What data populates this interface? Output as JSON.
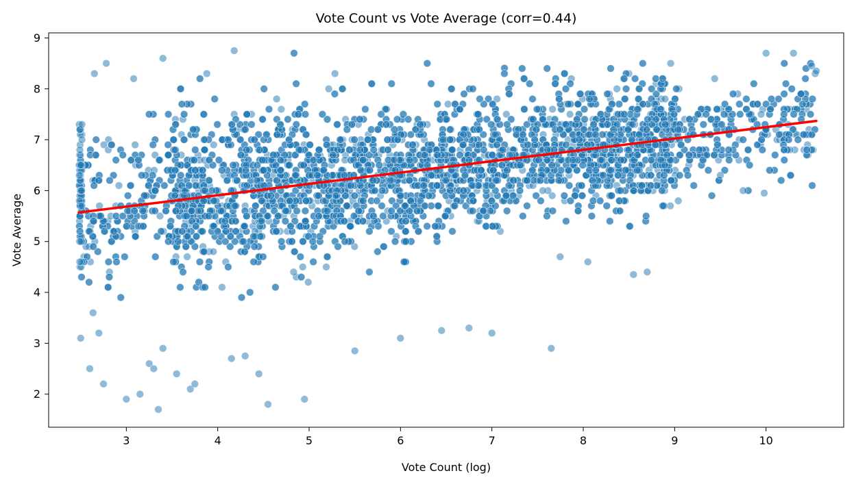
{
  "chart_data": {
    "type": "scatter",
    "title": "Vote Count vs Vote Average (corr=0.44)",
    "xlabel": "Vote Count (log)",
    "ylabel": "Vote Average",
    "xlim": [
      2.15,
      10.85
    ],
    "ylim": [
      1.35,
      9.1
    ],
    "xticks": [
      3,
      4,
      5,
      6,
      7,
      8,
      9,
      10
    ],
    "yticks": [
      2,
      3,
      4,
      5,
      6,
      7,
      8,
      9
    ],
    "grid": false,
    "legend": "none",
    "correlation": 0.44,
    "colors": {
      "points": "#1f77b4",
      "point_edge": "#ffffff",
      "regression_line": "#ff0000",
      "axes": "#000000",
      "background": "#ffffff"
    },
    "regression_line": {
      "x": [
        2.48,
        10.55
      ],
      "y": [
        5.57,
        7.37
      ]
    },
    "dense_cloud": {
      "description_points": "bulk of data between x 2.5 and 10.5 following the trend line",
      "x_range": [
        2.48,
        10.55
      ],
      "spread": 0.62
    },
    "points": [
      {
        "x": 2.5,
        "y": 3.1
      },
      {
        "x": 2.6,
        "y": 2.5
      },
      {
        "x": 2.7,
        "y": 3.2
      },
      {
        "x": 2.75,
        "y": 2.2
      },
      {
        "x": 3.0,
        "y": 1.9
      },
      {
        "x": 3.15,
        "y": 2.0
      },
      {
        "x": 3.35,
        "y": 1.7
      },
      {
        "x": 3.25,
        "y": 2.6
      },
      {
        "x": 3.3,
        "y": 2.5
      },
      {
        "x": 3.4,
        "y": 2.9
      },
      {
        "x": 3.55,
        "y": 2.4
      },
      {
        "x": 3.7,
        "y": 2.1
      },
      {
        "x": 3.75,
        "y": 2.2
      },
      {
        "x": 4.15,
        "y": 2.7
      },
      {
        "x": 4.3,
        "y": 2.75
      },
      {
        "x": 4.45,
        "y": 2.4
      },
      {
        "x": 4.55,
        "y": 1.8
      },
      {
        "x": 4.95,
        "y": 1.9
      },
      {
        "x": 5.5,
        "y": 2.85
      },
      {
        "x": 6.0,
        "y": 3.1
      },
      {
        "x": 6.45,
        "y": 3.25
      },
      {
        "x": 6.75,
        "y": 3.3
      },
      {
        "x": 7.0,
        "y": 3.2
      },
      {
        "x": 7.65,
        "y": 2.9
      },
      {
        "x": 8.55,
        "y": 4.35
      },
      {
        "x": 8.7,
        "y": 4.4
      },
      {
        "x": 3.4,
        "y": 8.6
      },
      {
        "x": 4.18,
        "y": 8.75
      },
      {
        "x": 2.78,
        "y": 8.5
      },
      {
        "x": 2.65,
        "y": 8.3
      },
      {
        "x": 3.08,
        "y": 8.2
      },
      {
        "x": 3.88,
        "y": 8.3
      },
      {
        "x": 10.0,
        "y": 8.7
      },
      {
        "x": 10.3,
        "y": 8.7
      },
      {
        "x": 10.5,
        "y": 8.45
      },
      {
        "x": 10.55,
        "y": 8.35
      },
      {
        "x": 9.98,
        "y": 5.95
      },
      {
        "x": 9.75,
        "y": 6.0
      },
      {
        "x": 9.5,
        "y": 6.3
      },
      {
        "x": 8.05,
        "y": 4.6
      }
    ]
  }
}
